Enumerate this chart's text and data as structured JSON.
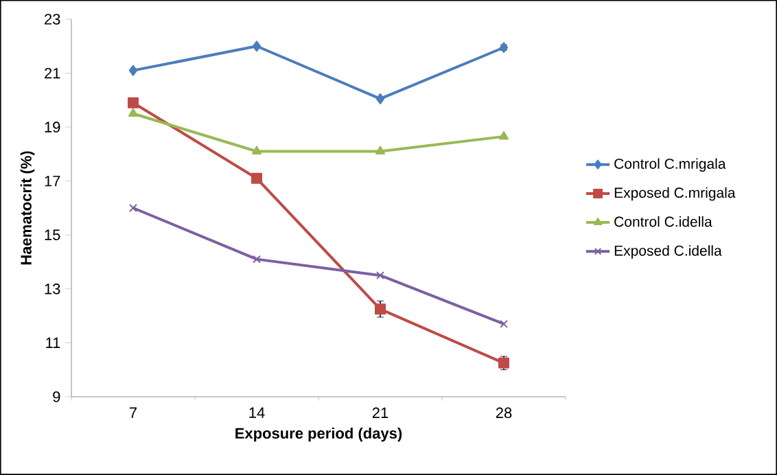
{
  "chart_data": {
    "type": "line",
    "xlabel": "Exposure period (days)",
    "ylabel": "Haematocrit (%)",
    "categories": [
      "7",
      "14",
      "21",
      "28"
    ],
    "series": [
      {
        "name": "Control C.mrigala",
        "color": "#4a7ebb",
        "marker": "diamond",
        "values": [
          21.1,
          22.0,
          20.05,
          21.95
        ],
        "errors": [
          null,
          null,
          null,
          0.1
        ]
      },
      {
        "name": "Exposed C.mrigala",
        "color": "#be4b48",
        "marker": "square",
        "values": [
          19.9,
          17.1,
          12.25,
          10.25
        ],
        "errors": [
          null,
          null,
          0.3,
          0.25
        ]
      },
      {
        "name": "Control C.idella",
        "color": "#98b954",
        "marker": "triangle",
        "values": [
          19.5,
          18.1,
          18.1,
          18.65
        ]
      },
      {
        "name": "Exposed C.idella",
        "color": "#7d5fa0",
        "marker": "cross",
        "values": [
          16.0,
          14.1,
          13.5,
          11.7
        ]
      }
    ],
    "ylim": [
      9,
      23
    ],
    "yticks": [
      9,
      11,
      13,
      15,
      17,
      19,
      21,
      23
    ],
    "grid": false,
    "legend": "right"
  }
}
